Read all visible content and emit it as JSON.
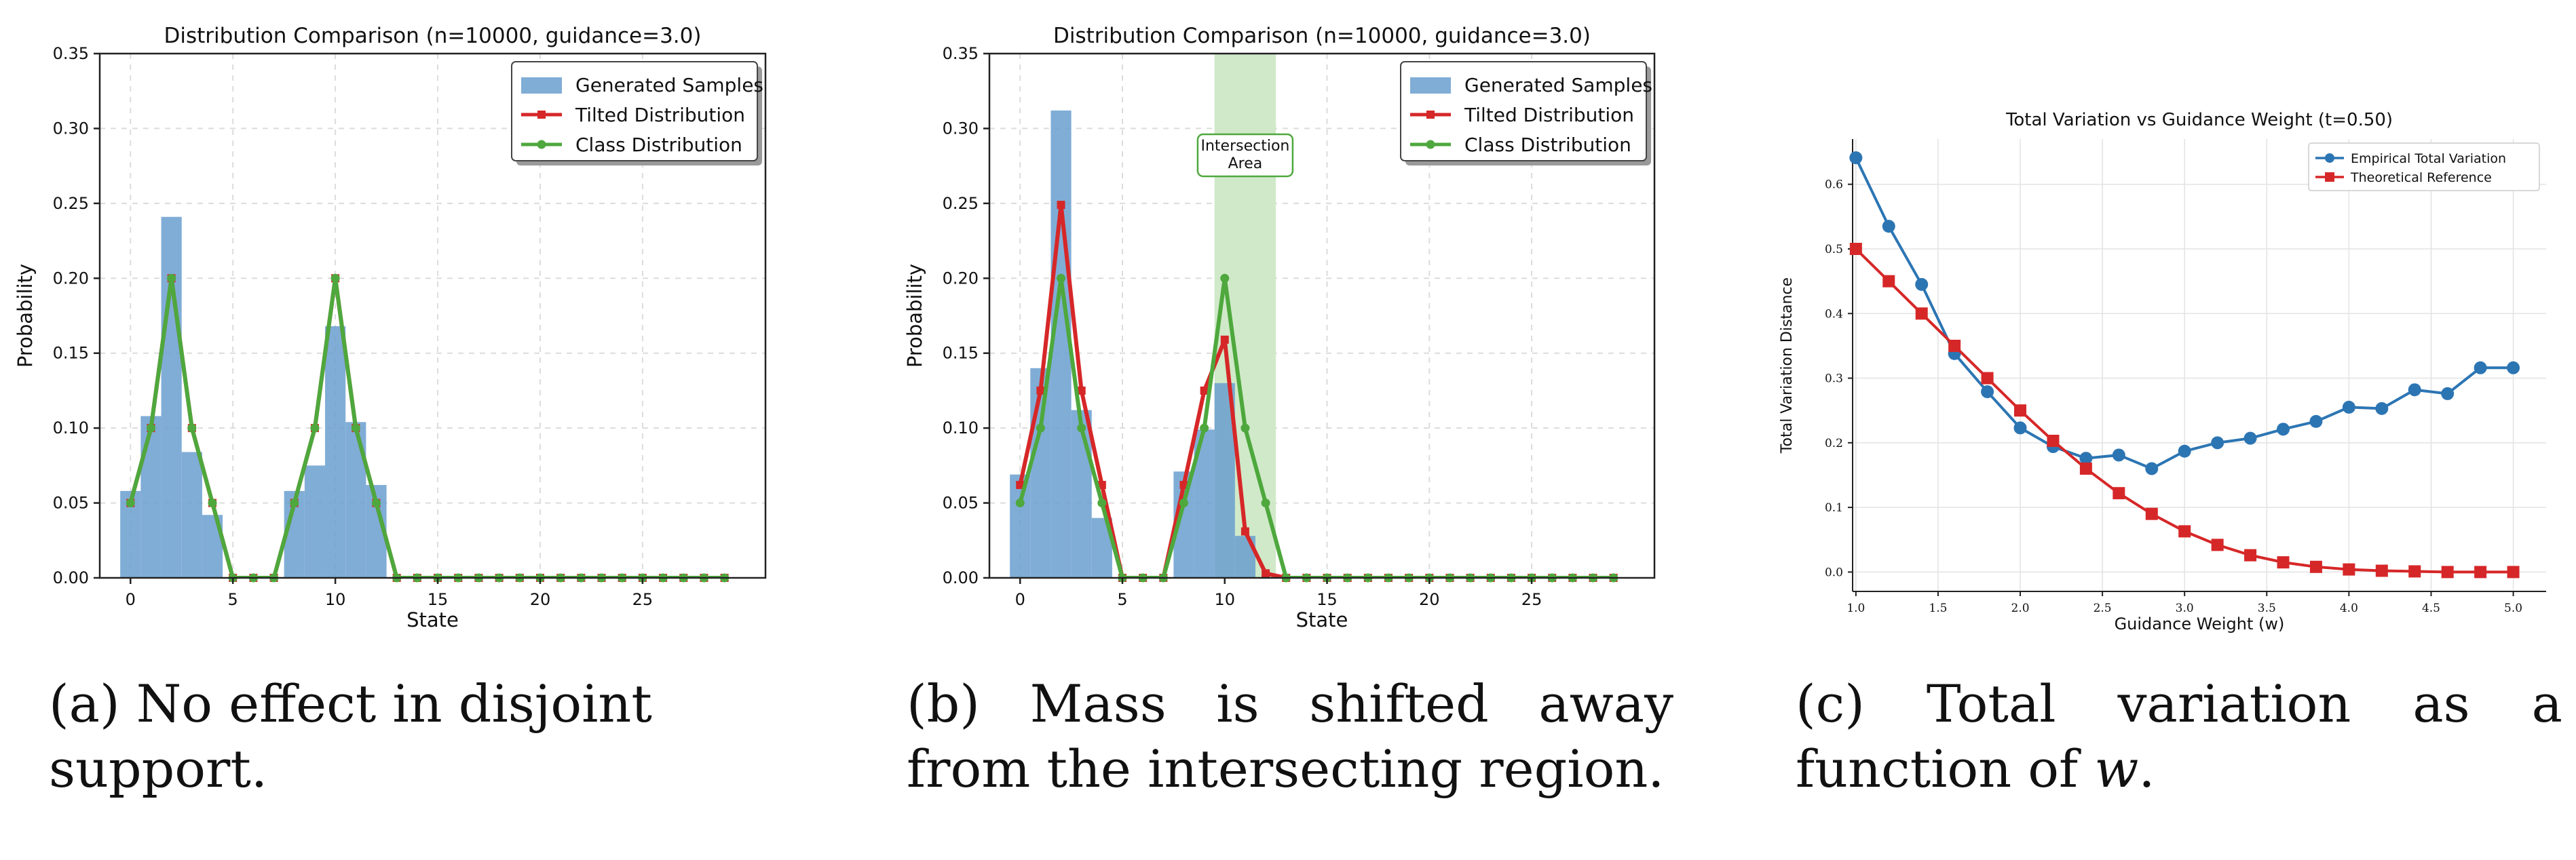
{
  "colors": {
    "samples": "#6a9fcf",
    "tilted": "#d62728",
    "class": "#4ea83d",
    "empirical": "#2c75b3",
    "theory": "#d62728",
    "intersection": "#cde8c6"
  },
  "captions": {
    "a": "(a) No effect in disjoint support.",
    "b": "(b) Mass is shifted away from the intersecting region.",
    "c_prefix": "(c) Total variation as a function of",
    "c_var": "w",
    "c_suffix": "."
  },
  "chart_data": [
    {
      "id": "a",
      "type": "bar",
      "title": "Distribution Comparison (n=10000, guidance=3.0)",
      "xlabel": "State",
      "ylabel": "Probability",
      "xlim": [
        -1.5,
        31
      ],
      "ylim": [
        0,
        0.35
      ],
      "xticks": [
        0,
        5,
        10,
        15,
        20,
        25
      ],
      "yticks": [
        0.0,
        0.05,
        0.1,
        0.15,
        0.2,
        0.25,
        0.3,
        0.35
      ],
      "legend_position": "top-right",
      "legend": [
        "Generated Samples",
        "Tilted Distribution",
        "Class Distribution"
      ],
      "states": [
        0,
        1,
        2,
        3,
        4,
        5,
        6,
        7,
        8,
        9,
        10,
        11,
        12,
        13,
        14,
        15,
        16,
        17,
        18,
        19,
        20,
        21,
        22,
        23,
        24,
        25,
        26,
        27,
        28,
        29
      ],
      "samples": [
        0.058,
        0.108,
        0.241,
        0.084,
        0.042,
        0,
        0,
        0,
        0.058,
        0.075,
        0.168,
        0.104,
        0.062,
        0,
        0,
        0,
        0,
        0,
        0,
        0,
        0,
        0,
        0,
        0,
        0,
        0,
        0,
        0,
        0,
        0
      ],
      "tilted": [
        0.05,
        0.1,
        0.2,
        0.1,
        0.05,
        0,
        0,
        0,
        0.05,
        0.1,
        0.2,
        0.1,
        0.05,
        0,
        0,
        0,
        0,
        0,
        0,
        0,
        0,
        0,
        0,
        0,
        0,
        0,
        0,
        0,
        0,
        0
      ],
      "class": [
        0.05,
        0.1,
        0.2,
        0.1,
        0.05,
        0,
        0,
        0,
        0.05,
        0.1,
        0.2,
        0.1,
        0.05,
        0,
        0,
        0,
        0,
        0,
        0,
        0,
        0,
        0,
        0,
        0,
        0,
        0,
        0,
        0,
        0,
        0
      ]
    },
    {
      "id": "b",
      "type": "bar",
      "title": "Distribution Comparison (n=10000, guidance=3.0)",
      "xlabel": "State",
      "ylabel": "Probability",
      "xlim": [
        -1.5,
        31
      ],
      "ylim": [
        0,
        0.35
      ],
      "xticks": [
        0,
        5,
        10,
        15,
        20,
        25
      ],
      "yticks": [
        0.0,
        0.05,
        0.1,
        0.15,
        0.2,
        0.25,
        0.3,
        0.35
      ],
      "legend_position": "top-right",
      "legend": [
        "Generated Samples",
        "Tilted Distribution",
        "Class Distribution"
      ],
      "annotation": {
        "text_line1": "Intersection",
        "text_line2": "Area",
        "x_start": 9.5,
        "x_end": 12.5
      },
      "states": [
        0,
        1,
        2,
        3,
        4,
        5,
        6,
        7,
        8,
        9,
        10,
        11,
        12,
        13,
        14,
        15,
        16,
        17,
        18,
        19,
        20,
        21,
        22,
        23,
        24,
        25,
        26,
        27,
        28,
        29
      ],
      "samples": [
        0.069,
        0.14,
        0.312,
        0.112,
        0.04,
        0,
        0,
        0,
        0.071,
        0.099,
        0.13,
        0.028,
        0,
        0,
        0,
        0,
        0,
        0,
        0,
        0,
        0,
        0,
        0,
        0,
        0,
        0,
        0,
        0,
        0,
        0
      ],
      "tilted": [
        0.062,
        0.125,
        0.249,
        0.125,
        0.062,
        0,
        0,
        0,
        0.062,
        0.125,
        0.159,
        0.031,
        0.003,
        0,
        0,
        0,
        0,
        0,
        0,
        0,
        0,
        0,
        0,
        0,
        0,
        0,
        0,
        0,
        0,
        0
      ],
      "class": [
        0.05,
        0.1,
        0.2,
        0.1,
        0.05,
        0,
        0,
        0,
        0.05,
        0.1,
        0.2,
        0.1,
        0.05,
        0,
        0,
        0,
        0,
        0,
        0,
        0,
        0,
        0,
        0,
        0,
        0,
        0,
        0,
        0,
        0,
        0
      ]
    },
    {
      "id": "c",
      "type": "line",
      "title": "Total Variation vs Guidance Weight (t=0.50)",
      "xlabel": "Guidance Weight (w)",
      "ylabel": "Total Variation Distance",
      "xlim": [
        0.98,
        5.2
      ],
      "ylim": [
        -0.03,
        0.67
      ],
      "xticks": [
        "1.0",
        "1.5",
        "2.0",
        "2.5",
        "3.0",
        "3.5",
        "4.0",
        "4.5",
        "5.0"
      ],
      "yticks": [
        "0.0",
        "0.1",
        "0.2",
        "0.3",
        "0.4",
        "0.5",
        "0.6"
      ],
      "legend_position": "top-right",
      "x": [
        1.0,
        1.2,
        1.4,
        1.6,
        1.8,
        2.0,
        2.2,
        2.4,
        2.6,
        2.8,
        3.0,
        3.2,
        3.4,
        3.6,
        3.8,
        4.0,
        4.2,
        4.4,
        4.6,
        4.8,
        5.0
      ],
      "series": [
        {
          "name": "Empirical Total Variation",
          "values": [
            0.641,
            0.535,
            0.445,
            0.338,
            0.279,
            0.223,
            0.194,
            0.176,
            0.181,
            0.16,
            0.187,
            0.2,
            0.207,
            0.221,
            0.233,
            0.255,
            0.253,
            0.282,
            0.276,
            0.316,
            0.316
          ]
        },
        {
          "name": "Theoretical Reference",
          "values": [
            0.5,
            0.45,
            0.4,
            0.35,
            0.3,
            0.25,
            0.203,
            0.16,
            0.122,
            0.09,
            0.063,
            0.042,
            0.026,
            0.015,
            0.008,
            0.004,
            0.002,
            0.001,
            0.0,
            0.0,
            0.0
          ]
        }
      ]
    }
  ]
}
